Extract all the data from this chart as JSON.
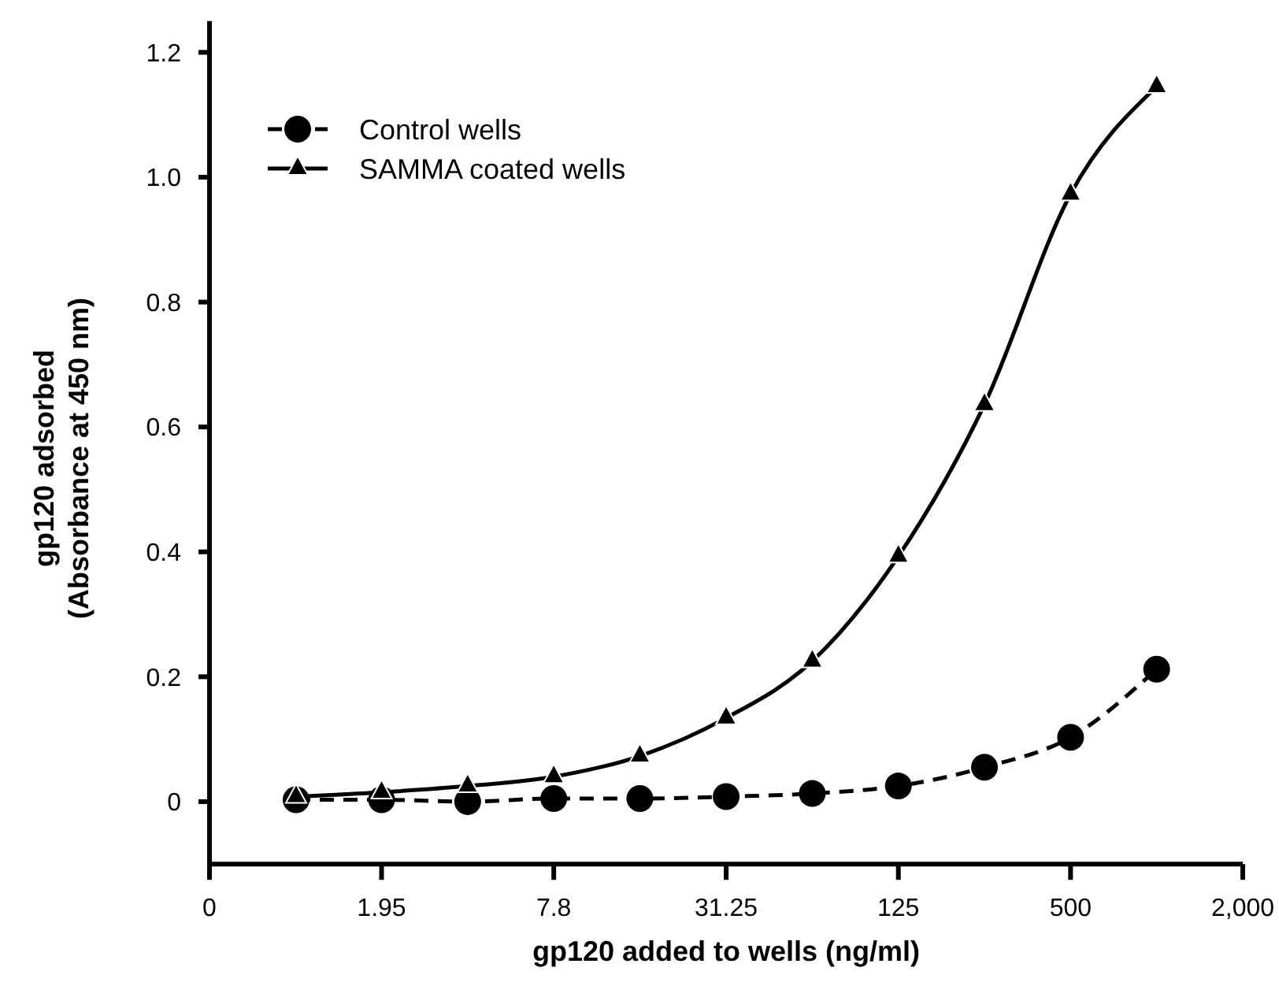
{
  "chart_data": {
    "type": "line",
    "xlabel": "gp120 added to wells (ng/ml)",
    "ylabel": "gp120 adsorbed\n(Absorbance at 450 nm)",
    "log": "x",
    "x": [
      0.98,
      1.95,
      3.9,
      7.8,
      15.6,
      31.25,
      62.5,
      125,
      250,
      500,
      1000
    ],
    "xlim": [
      0.488,
      2000
    ],
    "xticks": [
      {
        "value": 0.488,
        "label": "0"
      },
      1.95,
      7.8,
      31.25,
      125,
      500,
      {
        "value": 2000,
        "label": "2,000"
      }
    ],
    "ylim": [
      -0.1,
      1.25
    ],
    "yticks": [
      0,
      0.2,
      0.4,
      0.6,
      0.8,
      {
        "value": 1,
        "label": "1.0"
      },
      1.2
    ],
    "legend": "top left",
    "grid": false,
    "series": [
      {
        "name": "Control wells",
        "color": "#000000",
        "marker": "circle",
        "line_style": "dashed",
        "values": [
          0.003,
          0.003,
          0,
          0.005,
          0.005,
          0.008,
          0.013,
          0.025,
          0.055,
          0.103,
          0.212
        ]
      },
      {
        "name": "SAMMA coated wells",
        "color": "#000000",
        "marker": "triangle",
        "line_style": "solid",
        "values": [
          0.008,
          0.015,
          0.025,
          0.04,
          0.073,
          0.134,
          0.225,
          0.393,
          0.636,
          0.973,
          1.145
        ]
      }
    ]
  }
}
